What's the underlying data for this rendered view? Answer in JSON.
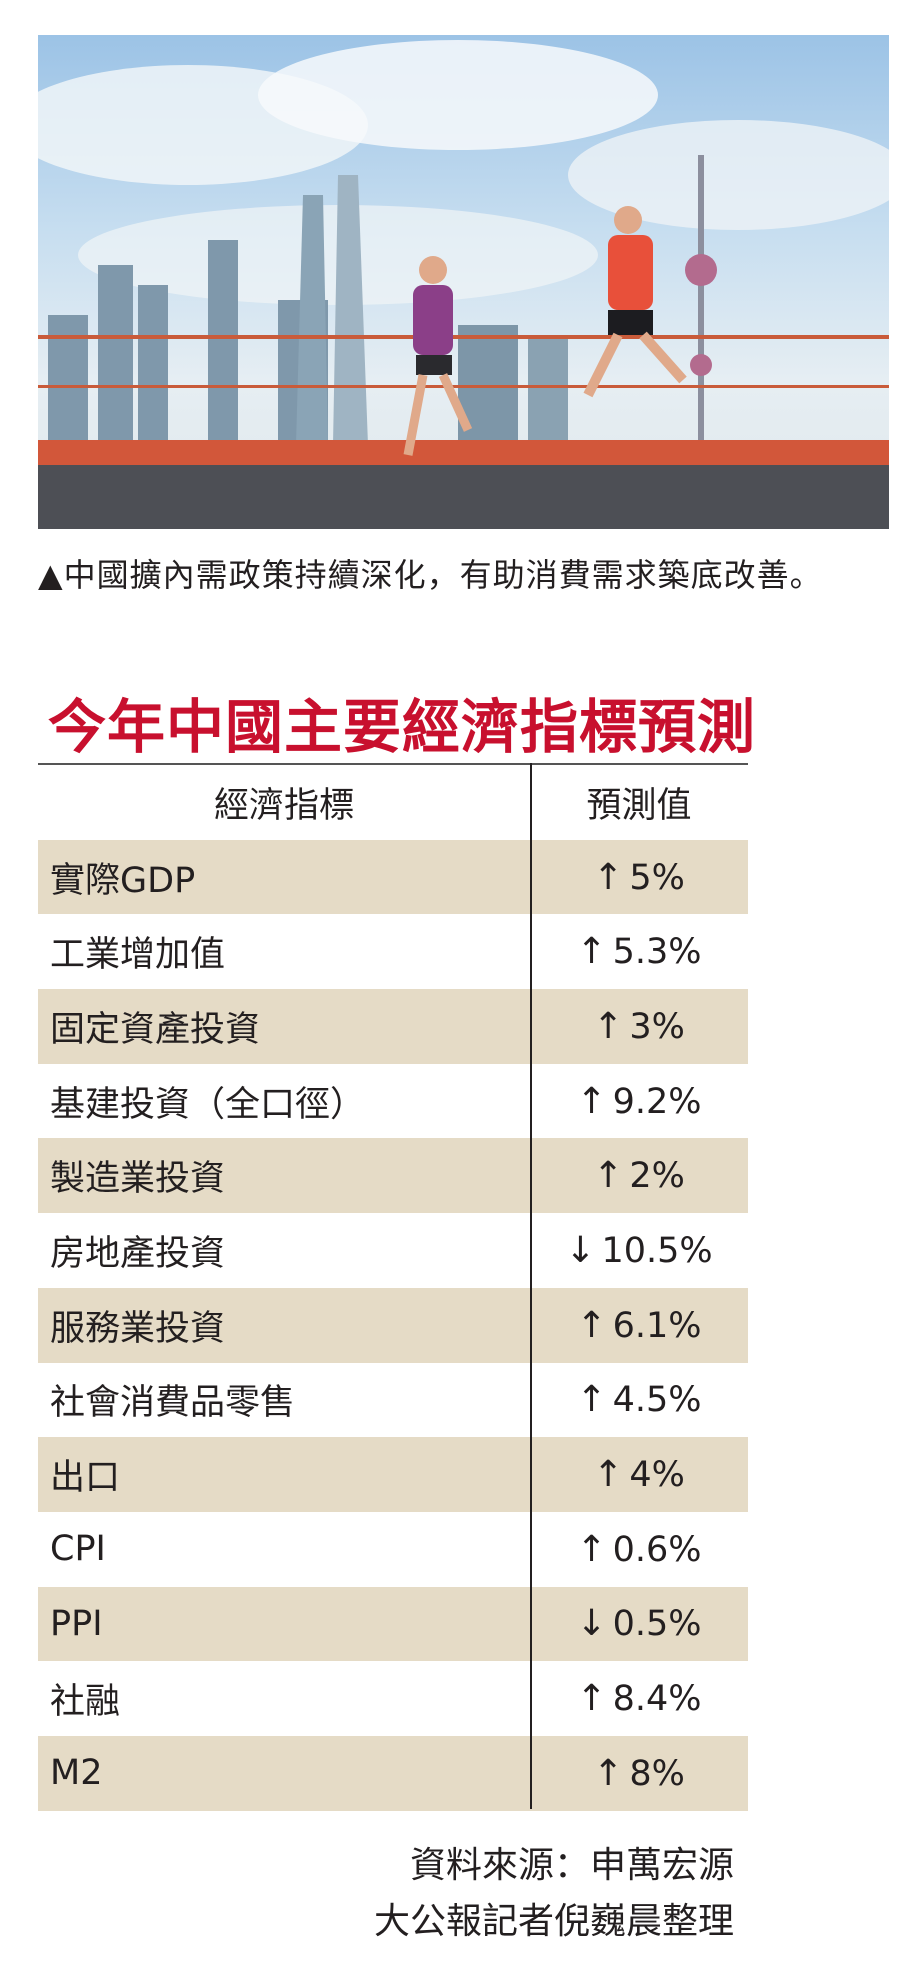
{
  "photo": {
    "description_icon": "photo"
  },
  "caption": "▲中國擴內需政策持續深化，有助消費需求築底改善。",
  "title": "今年中國主要經濟指標預測",
  "table": {
    "headers": [
      "經濟指標",
      "預測值"
    ],
    "rows": [
      {
        "indicator": "實際GDP",
        "arrow": "↑",
        "value": "5%"
      },
      {
        "indicator": "工業增加值",
        "arrow": "↑",
        "value": "5.3%"
      },
      {
        "indicator": "固定資產投資",
        "arrow": "↑",
        "value": "3%"
      },
      {
        "indicator": "基建投資（全口徑）",
        "arrow": "↑",
        "value": "9.2%"
      },
      {
        "indicator": "製造業投資",
        "arrow": "↑",
        "value": "2%"
      },
      {
        "indicator": "房地產投資",
        "arrow": "↓",
        "value": "10.5%"
      },
      {
        "indicator": "服務業投資",
        "arrow": "↑",
        "value": "6.1%"
      },
      {
        "indicator": "社會消費品零售",
        "arrow": "↑",
        "value": "4.5%"
      },
      {
        "indicator": "出口",
        "arrow": "↑",
        "value": "4%"
      },
      {
        "indicator": "CPI",
        "arrow": "↑",
        "value": "0.6%"
      },
      {
        "indicator": "PPI",
        "arrow": "↓",
        "value": "0.5%"
      },
      {
        "indicator": "社融",
        "arrow": "↑",
        "value": "8.4%"
      },
      {
        "indicator": "M2",
        "arrow": "↑",
        "value": "8%"
      }
    ]
  },
  "footer": {
    "source": "資料來源：申萬宏源",
    "credit": "大公報記者倪巍晨整理"
  },
  "colors": {
    "title": "#c8102e",
    "row_shade": "#e5dbc6"
  }
}
